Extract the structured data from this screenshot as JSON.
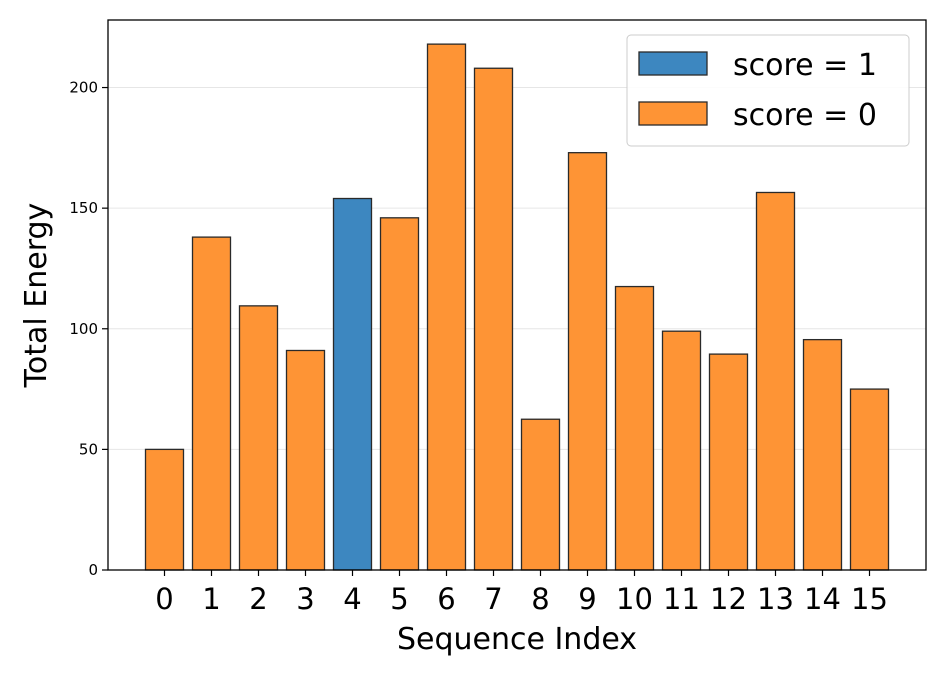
{
  "chart_data": {
    "type": "bar",
    "categories": [
      "0",
      "1",
      "2",
      "3",
      "4",
      "5",
      "6",
      "7",
      "8",
      "9",
      "10",
      "11",
      "12",
      "13",
      "14",
      "15"
    ],
    "values": [
      50,
      138,
      109.5,
      91,
      154,
      146,
      218,
      208,
      62.5,
      173,
      117.5,
      99,
      89.5,
      156.5,
      95.5,
      75
    ],
    "scores": [
      0,
      0,
      0,
      0,
      1,
      0,
      0,
      0,
      0,
      0,
      0,
      0,
      0,
      0,
      0,
      0
    ],
    "series": [
      {
        "name": "score = 1",
        "color": "#3d87c0"
      },
      {
        "name": "score = 0",
        "color": "#fe9435"
      }
    ],
    "xlabel": "Sequence Index",
    "ylabel": "Total Energy",
    "ylim": [
      0,
      228
    ],
    "yticks": [
      0,
      50,
      100,
      150,
      200
    ],
    "grid": "y",
    "legend_position": "top-right",
    "edge_color": "#2a2a2a"
  }
}
